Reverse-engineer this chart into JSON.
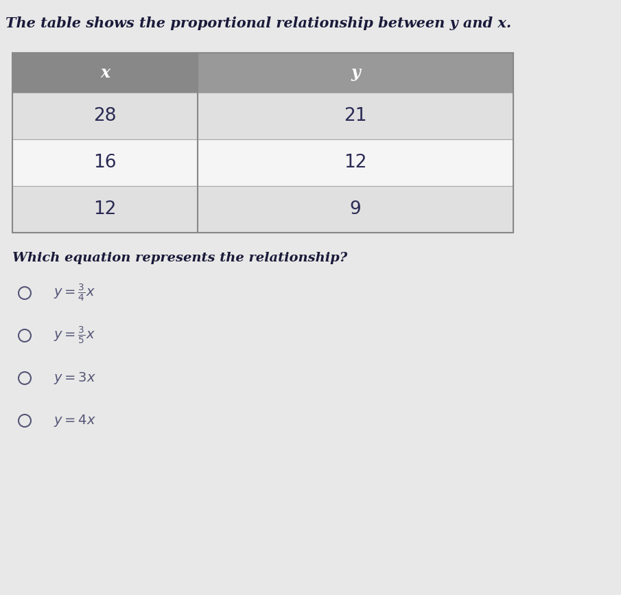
{
  "title": "The table shows the proportional relationship between y and x.",
  "table_headers": [
    "x",
    "y"
  ],
  "table_data": [
    [
      "28",
      "21"
    ],
    [
      "16",
      "12"
    ],
    [
      "12",
      "9"
    ]
  ],
  "question": "Which equation represents the relationship?",
  "option_texts_latex": [
    "$y = \\frac{3}{4}x$",
    "$y = \\frac{3}{5}x$",
    "$y = 3x$",
    "$y = 4x$"
  ],
  "background_color": "#e8e8e8",
  "header_bg_left": "#888888",
  "header_bg_right": "#999999",
  "row_bg_odd": "#e0e0e0",
  "row_bg_even": "#f5f5f5",
  "table_border": "#aaaaaa",
  "text_color": "#2a2a55",
  "title_color": "#1a1a3a",
  "option_color": "#555577"
}
